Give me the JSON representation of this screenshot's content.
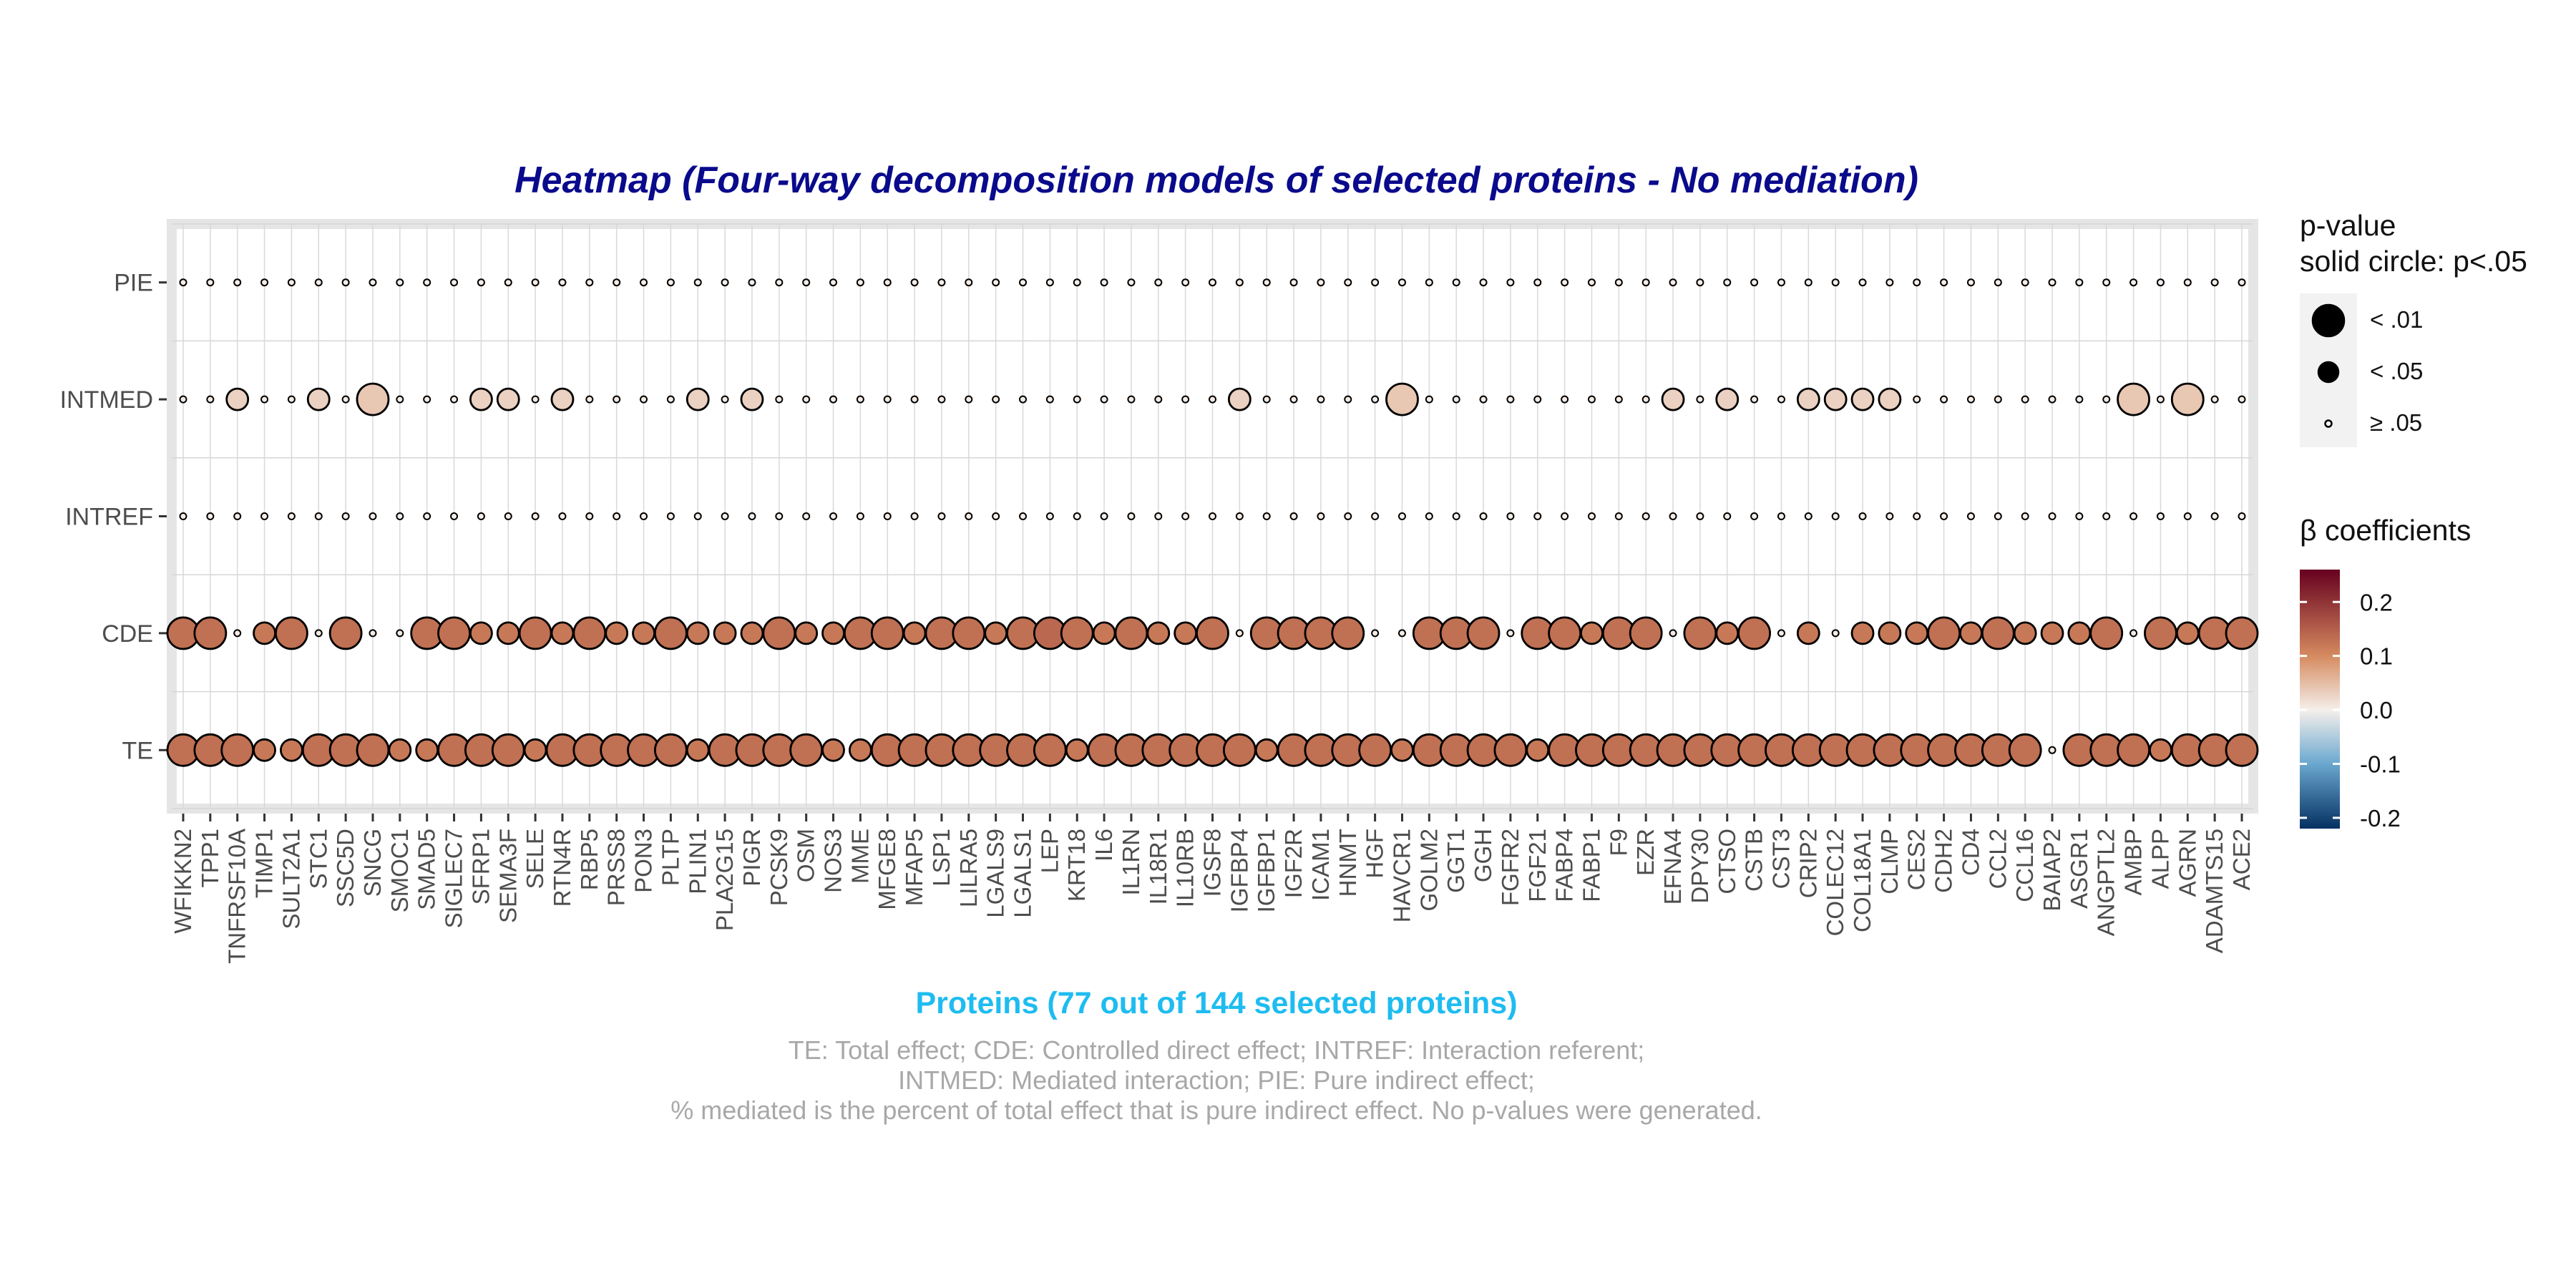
{
  "title": "Heatmap (Four-way decomposition models of selected proteins - No mediation)",
  "xlabel": "Proteins (77 out of 144 selected proteins)",
  "caption": [
    "TE: Total effect; CDE: Controlled direct effect; INTREF: Interaction referent;",
    "INTMED: Mediated interaction; PIE: Pure indirect effect;",
    "% mediated is the percent of total effect that is pure indirect effect. No p-values were generated."
  ],
  "legend": {
    "size_title": [
      "p-value",
      "solid circle: p<.05"
    ],
    "size_items": [
      {
        "label": "< .01",
        "level": 2
      },
      {
        "label": "< .05",
        "level": 1
      },
      {
        "label": "≥ .05",
        "level": 0
      }
    ],
    "color_title": "β coefficients",
    "color_ticks": [
      "0.2",
      "0.1",
      "0.0",
      "-0.1",
      "-0.2"
    ],
    "color_tick_values": [
      0.2,
      0.1,
      0.0,
      -0.1,
      -0.2
    ],
    "color_limits": [
      -0.22,
      0.26
    ],
    "colors": {
      "low": "#053061",
      "mid_low": "#6aa8cf",
      "mid": "#f5efeb",
      "mid_high": "#d58a5f",
      "high": "#67001f"
    }
  },
  "chart_data": {
    "type": "heatmap",
    "rows": [
      "PIE",
      "INTMED",
      "INTREF",
      "CDE",
      "TE"
    ],
    "columns": [
      "WFIKKN2",
      "TPP1",
      "TNFRSF10A",
      "TIMP1",
      "SULT2A1",
      "STC1",
      "SSC5D",
      "SNCG",
      "SMOC1",
      "SMAD5",
      "SIGLEC7",
      "SFRP1",
      "SEMA3F",
      "SELE",
      "RTN4R",
      "RBP5",
      "PRSS8",
      "PON3",
      "PLTP",
      "PLIN1",
      "PLA2G15",
      "PIGR",
      "PCSK9",
      "OSM",
      "NOS3",
      "MME",
      "MFGE8",
      "MFAP5",
      "LSP1",
      "LILRA5",
      "LGALS9",
      "LGALS1",
      "LEP",
      "KRT18",
      "IL6",
      "IL1RN",
      "IL18R1",
      "IL10RB",
      "IGSF8",
      "IGFBP4",
      "IGFBP1",
      "IGF2R",
      "ICAM1",
      "HNMT",
      "HGF",
      "HAVCR1",
      "GOLM2",
      "GGT1",
      "GGH",
      "FGFR2",
      "FGF21",
      "FABP4",
      "FABP1",
      "F9",
      "EZR",
      "EFNA4",
      "DPY30",
      "CTSO",
      "CSTB",
      "CST3",
      "CRIP2",
      "COLEC12",
      "COL18A1",
      "CLMP",
      "CES2",
      "CDH2",
      "CD4",
      "CCL2",
      "CCL16",
      "BAIAP2",
      "ASGR1",
      "ANGPTL2",
      "AMBP",
      "ALPP",
      "AGRN",
      "ADAMTS15",
      "ACE2"
    ],
    "size_levels": {
      "0": "≥ .05",
      "1": "< .05",
      "2": "< .01"
    },
    "PIE": {
      "beta": [
        0.002,
        0.002,
        0.002,
        0.002,
        0.002,
        0.002,
        0.002,
        0.002,
        0.002,
        0.002,
        0.002,
        0.002,
        0.002,
        0.002,
        0.002,
        0.002,
        0.002,
        0.002,
        0.002,
        0.002,
        0.002,
        0.002,
        0.002,
        0.002,
        0.002,
        0.002,
        0.002,
        0.002,
        0.002,
        0.002,
        0.002,
        0.002,
        0.002,
        0.002,
        0.002,
        0.002,
        0.002,
        0.002,
        0.002,
        0.002,
        0.002,
        0.002,
        0.002,
        0.002,
        0.002,
        0.002,
        0.002,
        0.002,
        0.002,
        0.002,
        0.002,
        0.002,
        0.002,
        0.002,
        0.002,
        0.002,
        0.002,
        0.002,
        0.002,
        0.002,
        0.002,
        0.002,
        0.002,
        0.002,
        0.002,
        0.002,
        0.002,
        0.002,
        0.002,
        0.002,
        0.002,
        0.002,
        0.002,
        0.002,
        0.002,
        0.002,
        0.002
      ],
      "p_level": [
        0,
        0,
        0,
        0,
        0,
        0,
        0,
        0,
        0,
        0,
        0,
        0,
        0,
        0,
        0,
        0,
        0,
        0,
        0,
        0,
        0,
        0,
        0,
        0,
        0,
        0,
        0,
        0,
        0,
        0,
        0,
        0,
        0,
        0,
        0,
        0,
        0,
        0,
        0,
        0,
        0,
        0,
        0,
        0,
        0,
        0,
        0,
        0,
        0,
        0,
        0,
        0,
        0,
        0,
        0,
        0,
        0,
        0,
        0,
        0,
        0,
        0,
        0,
        0,
        0,
        0,
        0,
        0,
        0,
        0,
        0,
        0,
        0,
        0,
        0,
        0,
        0
      ]
    },
    "INTMED": {
      "beta": [
        0.005,
        0.005,
        0.03,
        0.005,
        0.005,
        0.03,
        0.005,
        0.04,
        0.005,
        0.005,
        0.005,
        0.03,
        0.03,
        0.005,
        0.03,
        0.005,
        0.005,
        0.005,
        0.005,
        0.03,
        0.005,
        0.03,
        0.005,
        0.005,
        0.005,
        0.005,
        0.005,
        0.005,
        0.005,
        0.005,
        0.005,
        0.005,
        0.005,
        0.005,
        0.005,
        0.005,
        0.005,
        0.005,
        0.005,
        0.03,
        0.005,
        0.005,
        0.005,
        0.005,
        0.005,
        0.04,
        0.005,
        0.005,
        0.005,
        0.005,
        0.005,
        0.005,
        0.005,
        0.005,
        0.005,
        0.03,
        0.005,
        0.03,
        0.005,
        0.005,
        0.03,
        0.03,
        0.03,
        0.03,
        0.005,
        0.005,
        0.005,
        0.005,
        0.005,
        0.005,
        0.005,
        0.005,
        0.04,
        0.005,
        0.04,
        0.005,
        0.005
      ],
      "p_level": [
        0,
        0,
        1,
        0,
        0,
        1,
        0,
        2,
        0,
        0,
        0,
        1,
        1,
        0,
        1,
        0,
        0,
        0,
        0,
        1,
        0,
        1,
        0,
        0,
        0,
        0,
        0,
        0,
        0,
        0,
        0,
        0,
        0,
        0,
        0,
        0,
        0,
        0,
        0,
        1,
        0,
        0,
        0,
        0,
        0,
        2,
        0,
        0,
        0,
        0,
        0,
        0,
        0,
        0,
        0,
        1,
        0,
        1,
        0,
        0,
        1,
        1,
        1,
        1,
        0,
        0,
        0,
        0,
        0,
        0,
        0,
        0,
        2,
        0,
        2,
        0,
        0
      ]
    },
    "INTREF": {
      "beta": [
        0.002,
        0.002,
        0.002,
        0.002,
        0.002,
        0.002,
        0.002,
        0.002,
        0.002,
        0.002,
        0.002,
        0.002,
        0.002,
        0.002,
        0.002,
        0.002,
        0.002,
        0.002,
        0.002,
        0.002,
        0.002,
        0.002,
        0.002,
        0.002,
        0.002,
        0.002,
        0.002,
        0.002,
        0.002,
        0.002,
        0.002,
        0.002,
        0.002,
        0.002,
        0.002,
        0.002,
        0.002,
        0.002,
        0.002,
        0.002,
        0.002,
        0.002,
        0.002,
        0.002,
        0.002,
        0.002,
        0.002,
        0.002,
        0.002,
        0.002,
        0.002,
        0.002,
        0.002,
        0.002,
        0.002,
        0.002,
        0.002,
        0.002,
        0.002,
        0.002,
        0.002,
        0.002,
        0.002,
        0.002,
        0.002,
        0.002,
        0.002,
        0.002,
        0.002,
        0.002,
        0.002,
        0.002,
        0.002,
        0.002,
        0.002,
        0.002,
        0.002
      ],
      "p_level": [
        0,
        0,
        0,
        0,
        0,
        0,
        0,
        0,
        0,
        0,
        0,
        0,
        0,
        0,
        0,
        0,
        0,
        0,
        0,
        0,
        0,
        0,
        0,
        0,
        0,
        0,
        0,
        0,
        0,
        0,
        0,
        0,
        0,
        0,
        0,
        0,
        0,
        0,
        0,
        0,
        0,
        0,
        0,
        0,
        0,
        0,
        0,
        0,
        0,
        0,
        0,
        0,
        0,
        0,
        0,
        0,
        0,
        0,
        0,
        0,
        0,
        0,
        0,
        0,
        0,
        0,
        0,
        0,
        0,
        0,
        0,
        0,
        0,
        0,
        0,
        0,
        0
      ]
    },
    "CDE": {
      "beta": [
        0.13,
        0.13,
        0.005,
        0.12,
        0.13,
        0.005,
        0.13,
        0.005,
        0.005,
        0.13,
        0.13,
        0.12,
        0.12,
        0.13,
        0.12,
        0.13,
        0.12,
        0.12,
        0.13,
        0.12,
        0.12,
        0.12,
        0.13,
        0.12,
        0.12,
        0.13,
        0.13,
        0.12,
        0.13,
        0.13,
        0.12,
        0.13,
        0.14,
        0.13,
        0.12,
        0.13,
        0.12,
        0.12,
        0.13,
        0.005,
        0.13,
        0.13,
        0.13,
        0.13,
        0.005,
        0.005,
        0.13,
        0.13,
        0.13,
        0.005,
        0.13,
        0.13,
        0.12,
        0.13,
        0.13,
        0.005,
        0.13,
        0.12,
        0.13,
        0.005,
        0.12,
        0.005,
        0.12,
        0.12,
        0.12,
        0.13,
        0.12,
        0.13,
        0.12,
        0.12,
        0.12,
        0.13,
        0.005,
        0.13,
        0.12,
        0.13,
        0.13
      ],
      "p_level": [
        2,
        2,
        0,
        1,
        2,
        0,
        2,
        0,
        0,
        2,
        2,
        1,
        1,
        2,
        1,
        2,
        1,
        1,
        2,
        1,
        1,
        1,
        2,
        1,
        1,
        2,
        2,
        1,
        2,
        2,
        1,
        2,
        2,
        2,
        1,
        2,
        1,
        1,
        2,
        0,
        2,
        2,
        2,
        2,
        0,
        0,
        2,
        2,
        2,
        0,
        2,
        2,
        1,
        2,
        2,
        0,
        2,
        1,
        2,
        0,
        1,
        0,
        1,
        1,
        1,
        2,
        1,
        2,
        1,
        1,
        1,
        2,
        0,
        2,
        1,
        2,
        2
      ]
    },
    "TE": {
      "beta": [
        0.13,
        0.13,
        0.13,
        0.12,
        0.12,
        0.13,
        0.13,
        0.13,
        0.12,
        0.12,
        0.13,
        0.13,
        0.13,
        0.12,
        0.13,
        0.13,
        0.13,
        0.13,
        0.13,
        0.12,
        0.13,
        0.13,
        0.13,
        0.13,
        0.12,
        0.12,
        0.13,
        0.13,
        0.13,
        0.13,
        0.13,
        0.13,
        0.13,
        0.12,
        0.13,
        0.13,
        0.13,
        0.13,
        0.13,
        0.13,
        0.12,
        0.13,
        0.13,
        0.13,
        0.13,
        0.12,
        0.13,
        0.13,
        0.13,
        0.13,
        0.12,
        0.13,
        0.13,
        0.13,
        0.13,
        0.13,
        0.13,
        0.13,
        0.13,
        0.13,
        0.13,
        0.13,
        0.13,
        0.13,
        0.13,
        0.13,
        0.13,
        0.13,
        0.13,
        0.005,
        0.13,
        0.13,
        0.13,
        0.12,
        0.13,
        0.13,
        0.13
      ],
      "p_level": [
        2,
        2,
        2,
        1,
        1,
        2,
        2,
        2,
        1,
        1,
        2,
        2,
        2,
        1,
        2,
        2,
        2,
        2,
        2,
        1,
        2,
        2,
        2,
        2,
        1,
        1,
        2,
        2,
        2,
        2,
        2,
        2,
        2,
        1,
        2,
        2,
        2,
        2,
        2,
        2,
        1,
        2,
        2,
        2,
        2,
        1,
        2,
        2,
        2,
        2,
        1,
        2,
        2,
        2,
        2,
        2,
        2,
        2,
        2,
        2,
        2,
        2,
        2,
        2,
        2,
        2,
        2,
        2,
        2,
        0,
        2,
        2,
        2,
        1,
        2,
        2,
        2
      ]
    }
  }
}
